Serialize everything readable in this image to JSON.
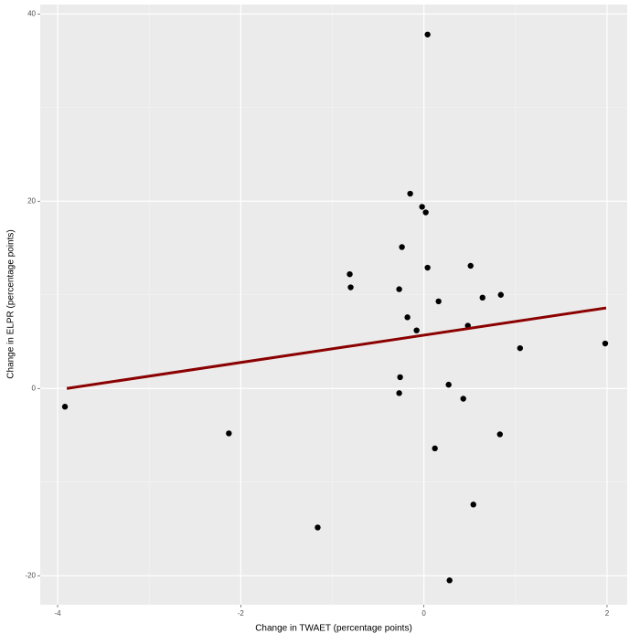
{
  "chart_data": {
    "type": "scatter",
    "x_label": "Change in TWAET (percentage points)",
    "y_label": "Change in ELPR (percentage points)",
    "xlim": [
      -4.19,
      2.22
    ],
    "ylim": [
      -23.1,
      41.0
    ],
    "xticks": [
      -4,
      -2,
      0,
      2
    ],
    "yticks": [
      -20,
      0,
      20,
      40
    ],
    "grid": true,
    "series": [
      {
        "color": "#000000",
        "x": [
          -3.92,
          -2.13,
          -1.16,
          -0.81,
          -0.8,
          -0.27,
          -0.24,
          -0.15,
          -0.02,
          0.02,
          0.04,
          0.04,
          -0.26,
          -0.27,
          -0.18,
          -0.08,
          0.16,
          0.12,
          0.27,
          0.28,
          0.43,
          0.48,
          0.51,
          0.54,
          0.64,
          0.84,
          0.83,
          1.05,
          1.98
        ],
        "values": [
          -1.95,
          -4.8,
          -14.85,
          12.2,
          10.8,
          10.6,
          15.1,
          20.8,
          19.4,
          18.8,
          37.8,
          12.9,
          1.2,
          -0.5,
          7.6,
          6.2,
          9.3,
          -6.4,
          0.4,
          -20.5,
          -1.1,
          6.7,
          13.1,
          -12.4,
          9.7,
          10.0,
          -4.9,
          4.3,
          4.8
        ]
      },
      {
        "type": "line",
        "color": "#8b0000",
        "x": [
          -3.9,
          1.99
        ],
        "values": [
          0.0,
          8.6
        ]
      }
    ]
  }
}
